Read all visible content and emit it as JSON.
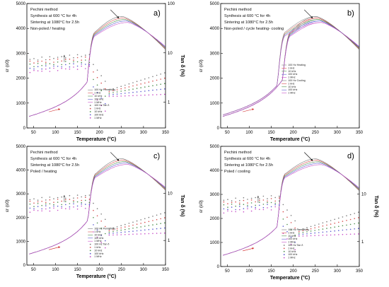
{
  "chart_data": [
    {
      "type": "line",
      "panel_label": "a)",
      "xlabel": "Temperature (°C)",
      "ylabel": "εr (ε0)",
      "y2label": "Tan δ (%)",
      "x_ticks": [
        50,
        100,
        150,
        200,
        250,
        300,
        350
      ],
      "y_ticks": [
        0,
        1000,
        2000,
        3000,
        4000,
        5000
      ],
      "y2_ticks": [
        "1",
        "10",
        "100"
      ],
      "xlim": [
        35,
        350
      ],
      "ylim": [
        0,
        5000
      ],
      "y2lim": [
        0.3,
        100
      ],
      "y2scale": "log",
      "notes": [
        "Pechini method",
        "Synthesis at 600 °C for 4h",
        "Sintering at 1080°C for 2.5h",
        "Non-poled / heating"
      ],
      "legend": [
        "100 Hz Permittivity",
        "1 kHz",
        "10 kHz",
        "100 kHz",
        "1 MHz",
        "100 Hz Tan δ",
        "1 kHz",
        "10 kHz",
        "100 kHz",
        "1 MHz"
      ],
      "permittivity_peak_x": [
        252,
        254,
        256,
        258,
        260
      ],
      "permittivity_peak_y": [
        4450,
        4400,
        4350,
        4300,
        4250
      ],
      "transition_x": 178
    },
    {
      "type": "line",
      "panel_label": "b)",
      "xlabel": "Temperature (°C)",
      "ylabel": "εr (ε0)",
      "x_ticks": [
        50,
        100,
        150,
        200,
        250,
        300,
        350
      ],
      "y_ticks": [
        0,
        1000,
        2000,
        3000,
        4000,
        5000
      ],
      "xlim": [
        35,
        350
      ],
      "ylim": [
        0,
        5000
      ],
      "notes": [
        "Pechini method",
        "Synthesis at 600 °C for 4h",
        "Sintering at 1080°C for 2.5h",
        "Non-poled / cycle heating- cooling"
      ],
      "legend": [
        "100 Hz Heating",
        "1 kHz",
        "10 kHz",
        "100 kHz",
        "1 MHz",
        "100 Hz Cooling",
        "1 kHz",
        "10 kHz",
        "100 kHz",
        "1 MHz"
      ],
      "heating_transition_x": 182,
      "cooling_transition_x": 170
    },
    {
      "type": "line",
      "panel_label": "c)",
      "xlabel": "Temperature (°C)",
      "ylabel": "εr (ε0)",
      "y2label": "Tan δ (%)",
      "x_ticks": [
        50,
        100,
        150,
        200,
        250,
        300,
        350
      ],
      "y_ticks": [
        0,
        1000,
        2000,
        3000,
        4000,
        5000
      ],
      "y2_ticks": [
        "1",
        "10"
      ],
      "xlim": [
        35,
        350
      ],
      "ylim": [
        0,
        5000
      ],
      "notes": [
        "Pechini method",
        "Synthesis at 600 °C for 4h",
        "Sintering at 1080°C for 2.5h",
        "Poled / heating"
      ],
      "legend": [
        "100 Hz Permittivity",
        "1 kHz",
        "10 kHz",
        "100 kHz",
        "1 MHz",
        "100 Hz Tan δ",
        "1 kHz",
        "10 kHz",
        "100 kHz",
        "1 MHz"
      ],
      "transition_x": 180
    },
    {
      "type": "line",
      "panel_label": "d)",
      "xlabel": "Temperature (°C)",
      "ylabel": "εr (ε0)",
      "y2label": "Tan δ (%)",
      "x_ticks": [
        50,
        100,
        150,
        200,
        250,
        300,
        350
      ],
      "y_ticks": [
        0,
        1000,
        2000,
        3000,
        4000,
        5000
      ],
      "y2_ticks": [
        "1",
        "10"
      ],
      "xlim": [
        35,
        350
      ],
      "ylim": [
        0,
        5000
      ],
      "notes": [
        "Pechini method",
        "Synthesis at 600 °C for 4h",
        "Sintering at 1080°C for 2.5h",
        "Poled / cooling"
      ],
      "legend": [
        "100 Hz Permittivity",
        "1 kHz",
        "10 kHz",
        "100 kHz",
        "1 MHz",
        "100 Hz Tan δ",
        "1 kHz",
        "10 kHz",
        "100 kHz",
        "1 MHz"
      ],
      "transition_x": 170
    }
  ],
  "series_colors": [
    "#7a7a7a",
    "#d94f4f",
    "#4d8f4d",
    "#5a5ad0",
    "#c84fc8"
  ]
}
